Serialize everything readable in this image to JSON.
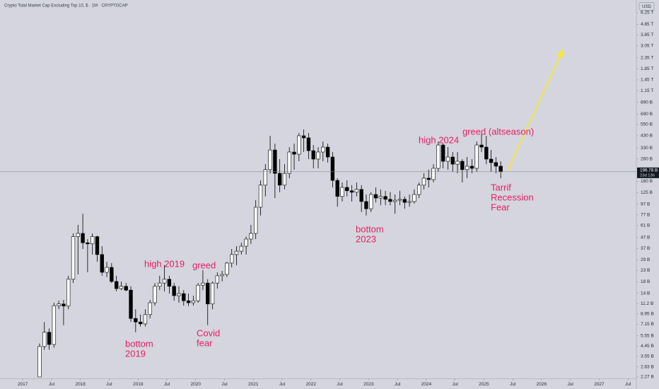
{
  "chart_data": {
    "type": "candlestick",
    "title": "Crypto Total Market Cap Excluding Top 10, $ · 1M · CRYPTOCAP",
    "currency": "USD",
    "log_scale": true,
    "grid": false,
    "up_color": "#ffffff",
    "down_color": "#000000",
    "border_color": "#000000",
    "x": [
      "2017-04",
      "2017-05",
      "2017-06",
      "2017-07",
      "2017-08",
      "2017-09",
      "2017-10",
      "2017-11",
      "2017-12",
      "2018-01",
      "2018-02",
      "2018-03",
      "2018-04",
      "2018-05",
      "2018-06",
      "2018-07",
      "2018-08",
      "2018-09",
      "2018-10",
      "2018-11",
      "2018-12",
      "2019-01",
      "2019-02",
      "2019-03",
      "2019-04",
      "2019-05",
      "2019-06",
      "2019-07",
      "2019-08",
      "2019-09",
      "2019-10",
      "2019-11",
      "2019-12",
      "2020-01",
      "2020-02",
      "2020-03",
      "2020-04",
      "2020-05",
      "2020-06",
      "2020-07",
      "2020-08",
      "2020-09",
      "2020-10",
      "2020-11",
      "2020-12",
      "2021-01",
      "2021-02",
      "2021-03",
      "2021-04",
      "2021-05",
      "2021-06",
      "2021-07",
      "2021-08",
      "2021-09",
      "2021-10",
      "2021-11",
      "2021-12",
      "2022-01",
      "2022-02",
      "2022-03",
      "2022-04",
      "2022-05",
      "2022-06",
      "2022-07",
      "2022-08",
      "2022-09",
      "2022-10",
      "2022-11",
      "2022-12",
      "2023-01",
      "2023-02",
      "2023-03",
      "2023-04",
      "2023-05",
      "2023-06",
      "2023-07",
      "2023-08",
      "2023-09",
      "2023-10",
      "2023-11",
      "2023-12",
      "2024-01",
      "2024-02",
      "2024-03",
      "2024-04",
      "2024-05",
      "2024-06",
      "2024-07",
      "2024-08",
      "2024-09",
      "2024-10",
      "2024-11",
      "2024-12",
      "2025-01",
      "2025-02",
      "2025-03",
      "2025-04"
    ],
    "open": [
      2.27,
      4.4,
      6.0,
      4.6,
      10.7,
      11.1,
      10.6,
      19,
      48,
      51.5,
      42,
      41,
      48,
      32.5,
      22.1,
      24.6,
      18.1,
      15.5,
      16.3,
      15,
      8.1,
      7.5,
      7.2,
      8.8,
      11.4,
      16.3,
      17.5,
      19,
      16.3,
      13.3,
      13.9,
      11.9,
      11.4,
      11.9,
      16.7,
      17.5,
      11.1,
      17.5,
      20.5,
      21.1,
      27,
      32.5,
      35,
      39,
      45.5,
      51.5,
      91,
      147,
      206,
      316,
      190,
      147,
      190,
      302,
      288,
      430,
      411,
      311,
      259,
      302,
      336,
      271,
      163,
      115,
      140,
      130,
      126,
      134,
      103,
      88,
      120,
      111,
      115,
      108,
      103,
      106,
      108,
      101,
      103,
      120,
      147,
      171,
      166,
      212,
      352,
      247,
      271,
      232,
      247,
      206,
      222,
      212,
      352,
      336,
      259,
      240,
      222
    ],
    "high": [
      4.7,
      7.5,
      6.5,
      11.4,
      11.9,
      12.1,
      20.5,
      51.5,
      62,
      79,
      45.5,
      51.5,
      49,
      39,
      27.8,
      27,
      20.5,
      18.1,
      17.5,
      16.3,
      9.9,
      8.8,
      9.9,
      12.1,
      17.5,
      20.5,
      25.8,
      20.5,
      17.5,
      16.3,
      15,
      13.9,
      13.3,
      17.5,
      23.1,
      19,
      18.1,
      22.1,
      22.8,
      27.8,
      36.7,
      39,
      42,
      48,
      62,
      106,
      163,
      232,
      430,
      363,
      259,
      232,
      336,
      363,
      457,
      494,
      457,
      352,
      336,
      380,
      363,
      302,
      171,
      156,
      163,
      147,
      156,
      147,
      120,
      126,
      140,
      134,
      130,
      126,
      120,
      130,
      115,
      120,
      134,
      156,
      190,
      206,
      232,
      380,
      363,
      336,
      302,
      302,
      259,
      271,
      259,
      380,
      444,
      430,
      316,
      271,
      247
    ],
    "low": [
      2.27,
      4.1,
      4.1,
      4.3,
      9.9,
      7.0,
      9.9,
      17.5,
      21.1,
      36.7,
      22.1,
      32.5,
      27.8,
      20.5,
      19.9,
      17.5,
      14.6,
      15,
      14.6,
      7.5,
      6.0,
      6.8,
      6.8,
      8.1,
      10.7,
      15,
      14.6,
      13.9,
      11.9,
      11.4,
      10.7,
      10.6,
      10.7,
      11.4,
      15,
      7.0,
      9.9,
      15.5,
      18.1,
      19.9,
      24.6,
      25.8,
      32.5,
      32.5,
      41,
      45.5,
      76,
      115,
      190,
      111,
      126,
      134,
      171,
      206,
      247,
      302,
      259,
      212,
      212,
      247,
      240,
      140,
      92,
      103,
      115,
      103,
      115,
      82,
      76,
      82,
      101,
      95,
      95,
      95,
      79,
      95,
      88,
      92,
      98,
      111,
      134,
      140,
      156,
      197,
      212,
      206,
      197,
      190,
      156,
      171,
      190,
      197,
      302,
      232,
      197,
      190,
      171
    ],
    "close": [
      4.4,
      6.0,
      4.6,
      10.7,
      11.1,
      10.6,
      19,
      48,
      51.5,
      42,
      41,
      48,
      32.5,
      22.1,
      24.6,
      18.1,
      15.5,
      16.3,
      15,
      8.1,
      7.5,
      7.2,
      8.8,
      11.4,
      16.3,
      17.5,
      19,
      16.3,
      13.3,
      13.9,
      11.9,
      11.4,
      11.9,
      16.7,
      17.5,
      11.1,
      17.5,
      20.5,
      21.1,
      27,
      32.5,
      35,
      39,
      45.5,
      51.5,
      91,
      147,
      206,
      316,
      190,
      147,
      190,
      302,
      288,
      430,
      411,
      311,
      259,
      302,
      336,
      271,
      163,
      115,
      140,
      130,
      126,
      134,
      103,
      88,
      120,
      111,
      115,
      108,
      103,
      106,
      108,
      101,
      103,
      120,
      147,
      171,
      166,
      212,
      352,
      247,
      271,
      232,
      247,
      206,
      222,
      212,
      352,
      336,
      259,
      240,
      222,
      196.78
    ],
    "xlim": [
      "2016-09",
      "2027-08"
    ],
    "xticks": [
      {
        "value": "2017-01",
        "label": "2017"
      },
      {
        "value": "2017-07",
        "label": "Jul"
      },
      {
        "value": "2018-01",
        "label": "2018"
      },
      {
        "value": "2018-07",
        "label": "Jul"
      },
      {
        "value": "2019-01",
        "label": "2019"
      },
      {
        "value": "2019-07",
        "label": "Jul"
      },
      {
        "value": "2020-01",
        "label": "2020"
      },
      {
        "value": "2020-07",
        "label": "Jul"
      },
      {
        "value": "2021-01",
        "label": "2021"
      },
      {
        "value": "2021-07",
        "label": "Jul"
      },
      {
        "value": "2022-01",
        "label": "2022"
      },
      {
        "value": "2022-07",
        "label": "Jul"
      },
      {
        "value": "2023-01",
        "label": "2023"
      },
      {
        "value": "2023-07",
        "label": "Jul"
      },
      {
        "value": "2024-01",
        "label": "2024"
      },
      {
        "value": "2024-07",
        "label": "Jul"
      },
      {
        "value": "2025-01",
        "label": "2025"
      },
      {
        "value": "2025-07",
        "label": "Jul"
      },
      {
        "value": "2026-01",
        "label": "2026"
      },
      {
        "value": "2026-07",
        "label": "Jul"
      },
      {
        "value": "2027-01",
        "label": "2027"
      },
      {
        "value": "2027-07",
        "label": "Jul"
      }
    ],
    "ylim": [
      2.2,
      8240
    ],
    "yticks": [
      {
        "value": 6250,
        "label": "6.25 T"
      },
      {
        "value": 4850,
        "label": "4.85 T"
      },
      {
        "value": 3850,
        "label": "3.85 T"
      },
      {
        "value": 3050,
        "label": "3.05 T"
      },
      {
        "value": 2350,
        "label": "2.35 T"
      },
      {
        "value": 1850,
        "label": "1.85 T"
      },
      {
        "value": 1450,
        "label": "1.45 T"
      },
      {
        "value": 1150,
        "label": "1.15 T"
      },
      {
        "value": 890,
        "label": "890 B"
      },
      {
        "value": 690,
        "label": "690 B"
      },
      {
        "value": 550,
        "label": "550 B"
      },
      {
        "value": 430,
        "label": "430 B"
      },
      {
        "value": 330,
        "label": "330 B"
      },
      {
        "value": 260,
        "label": "260 B"
      },
      {
        "value": 160,
        "label": "160 B"
      },
      {
        "value": 125,
        "label": "125 B"
      },
      {
        "value": 97,
        "label": "97 B"
      },
      {
        "value": 77,
        "label": "77 B"
      },
      {
        "value": 61,
        "label": "61 B"
      },
      {
        "value": 47,
        "label": "47 B"
      },
      {
        "value": 37,
        "label": "37 B"
      },
      {
        "value": 29,
        "label": "29 B"
      },
      {
        "value": 23,
        "label": "23 B"
      },
      {
        "value": 18,
        "label": "18 B"
      },
      {
        "value": 14,
        "label": "14 B"
      },
      {
        "value": 11.2,
        "label": "11.2 B"
      },
      {
        "value": 8.95,
        "label": "8.95 B"
      },
      {
        "value": 7.15,
        "label": "7.15 B"
      },
      {
        "value": 5.55,
        "label": "5.55 B"
      },
      {
        "value": 4.45,
        "label": "4.45 B"
      },
      {
        "value": 3.55,
        "label": "3.55 B"
      },
      {
        "value": 2.83,
        "label": "2.83 B"
      },
      {
        "value": 2.27,
        "label": "2.27 B"
      }
    ],
    "price_line": {
      "value": 196.78,
      "label": "196.78 B"
    },
    "countdown": "23d 13h",
    "annotations": [
      {
        "lines": [
          "bottom",
          "2019"
        ]
      },
      {
        "lines": [
          "high 2019"
        ]
      },
      {
        "lines": [
          "greed"
        ]
      },
      {
        "lines": [
          "Covid",
          "fear"
        ]
      },
      {
        "lines": [
          "bottom",
          "2023"
        ]
      },
      {
        "lines": [
          "high 2024"
        ]
      },
      {
        "lines": [
          "greed (altseason)"
        ]
      },
      {
        "lines": [
          "Tarrif",
          "Recession",
          "Fear"
        ]
      }
    ],
    "annotation_color": "#e91e63"
  }
}
